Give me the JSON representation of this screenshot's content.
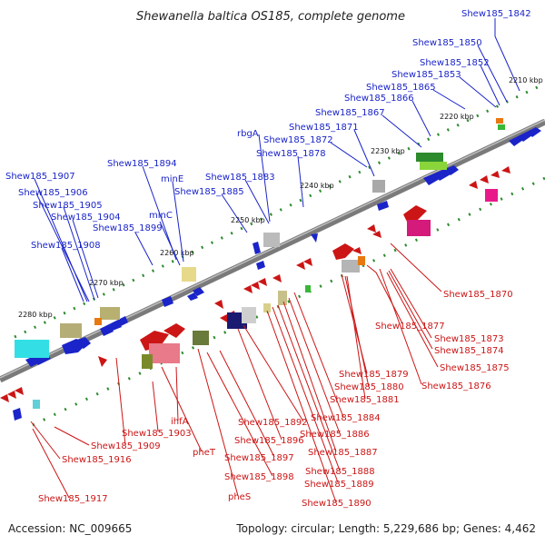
{
  "title": "Shewanella baltica OS185, complete genome",
  "footer": {
    "accession": "Accession: NC_009665",
    "info": "Topology: circular; Length: 5,229,686 bp; Genes: 4,462"
  },
  "kbp_ticks": [
    "2210 kbp",
    "2220 kbp",
    "2230 kbp",
    "2240 kbp",
    "2250 kbp",
    "2260 kbp",
    "2270 kbp",
    "2280 kbp"
  ],
  "genes_top": [
    "Shew185_1842",
    "Shew185_1850",
    "Shew185_1852",
    "Shew185_1853",
    "Shew185_1865",
    "Shew185_1866",
    "Shew185_1867",
    "Shew185_1871",
    "rbgA",
    "Shew185_1872",
    "Shew185_1878",
    "Shew185_1894",
    "minE",
    "Shew185_1883",
    "Shew185_1885",
    "Shew185_1907",
    "Shew185_1906",
    "Shew185_1905",
    "Shew185_1904",
    "Shew185_1899",
    "minC",
    "Shew185_1908"
  ],
  "genes_bottom": [
    "Shew185_1870",
    "Shew185_1877",
    "Shew185_1873",
    "Shew185_1874",
    "Shew185_1875",
    "Shew185_1876",
    "Shew185_1879",
    "Shew185_1880",
    "Shew185_1881",
    "Shew185_1884",
    "Shew185_1892",
    "Shew185_1886",
    "Shew185_1903",
    "ihfA",
    "Shew185_1896",
    "Shew185_1887",
    "Shew185_1909",
    "pheT",
    "Shew185_1897",
    "Shew185_1888",
    "Shew185_1916",
    "Shew185_1898",
    "Shew185_1889",
    "pheS",
    "Shew185_1890",
    "Shew185_1917"
  ],
  "colors": {
    "forward": "#1a24c8",
    "reverse": "#cc1515",
    "backbone": "#777777",
    "tick": "#228b22"
  }
}
